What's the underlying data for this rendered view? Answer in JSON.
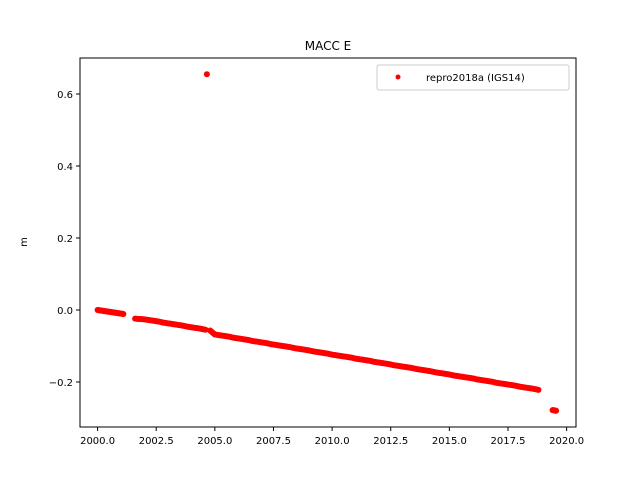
{
  "chart_data": {
    "type": "scatter",
    "title": "MACC E",
    "xlabel": "",
    "ylabel": "m",
    "xlim": [
      1999.25,
      2020.4
    ],
    "ylim": [
      -0.325,
      0.7
    ],
    "xticks": [
      2000.0,
      2002.5,
      2005.0,
      2007.5,
      2010.0,
      2012.5,
      2015.0,
      2017.5,
      2020.0
    ],
    "xtick_labels": [
      "2000.0",
      "2002.5",
      "2005.0",
      "2007.5",
      "2010.0",
      "2012.5",
      "2015.0",
      "2017.5",
      "2020.0"
    ],
    "yticks": [
      -0.2,
      0.0,
      0.2,
      0.4,
      0.6
    ],
    "ytick_labels": [
      "−0.2",
      "0.0",
      "0.2",
      "0.4",
      "0.6"
    ],
    "grid": false,
    "legend_position": "top-right",
    "series": [
      {
        "name": "repro2018a (IGS14)",
        "color": "#ff0000",
        "marker": "dot",
        "points": [
          [
            2000.0,
            0.0
          ],
          [
            2000.1,
            -0.001
          ],
          [
            2000.2,
            -0.002
          ],
          [
            2000.3,
            -0.003
          ],
          [
            2000.4,
            -0.004
          ],
          [
            2000.5,
            -0.005
          ],
          [
            2000.6,
            -0.006
          ],
          [
            2000.7,
            -0.007
          ],
          [
            2000.8,
            -0.008
          ],
          [
            2000.9,
            -0.009
          ],
          [
            2001.0,
            -0.01
          ],
          [
            2001.1,
            -0.011
          ],
          [
            2001.6,
            -0.024
          ],
          [
            2001.8,
            -0.025
          ],
          [
            2002.0,
            -0.026
          ],
          [
            2002.2,
            -0.028
          ],
          [
            2002.4,
            -0.03
          ],
          [
            2002.6,
            -0.032
          ],
          [
            2002.8,
            -0.035
          ],
          [
            2003.0,
            -0.037
          ],
          [
            2003.2,
            -0.039
          ],
          [
            2003.4,
            -0.041
          ],
          [
            2003.6,
            -0.043
          ],
          [
            2003.8,
            -0.046
          ],
          [
            2004.0,
            -0.048
          ],
          [
            2004.2,
            -0.05
          ],
          [
            2004.4,
            -0.052
          ],
          [
            2004.6,
            -0.055
          ],
          [
            2004.66,
            0.655
          ],
          [
            2004.8,
            -0.057
          ],
          [
            2005.0,
            -0.068
          ],
          [
            2005.2,
            -0.07
          ],
          [
            2005.4,
            -0.072
          ],
          [
            2005.6,
            -0.074
          ],
          [
            2005.8,
            -0.077
          ],
          [
            2006.0,
            -0.079
          ],
          [
            2006.2,
            -0.081
          ],
          [
            2006.4,
            -0.083
          ],
          [
            2006.6,
            -0.086
          ],
          [
            2006.8,
            -0.088
          ],
          [
            2007.0,
            -0.09
          ],
          [
            2007.2,
            -0.092
          ],
          [
            2007.4,
            -0.095
          ],
          [
            2007.6,
            -0.097
          ],
          [
            2007.8,
            -0.099
          ],
          [
            2008.0,
            -0.101
          ],
          [
            2008.2,
            -0.103
          ],
          [
            2008.4,
            -0.106
          ],
          [
            2008.6,
            -0.108
          ],
          [
            2008.8,
            -0.11
          ],
          [
            2009.0,
            -0.112
          ],
          [
            2009.2,
            -0.115
          ],
          [
            2009.4,
            -0.117
          ],
          [
            2009.6,
            -0.119
          ],
          [
            2009.8,
            -0.121
          ],
          [
            2010.0,
            -0.124
          ],
          [
            2010.2,
            -0.126
          ],
          [
            2010.4,
            -0.128
          ],
          [
            2010.6,
            -0.13
          ],
          [
            2010.8,
            -0.132
          ],
          [
            2011.0,
            -0.135
          ],
          [
            2011.2,
            -0.137
          ],
          [
            2011.4,
            -0.139
          ],
          [
            2011.6,
            -0.141
          ],
          [
            2011.8,
            -0.144
          ],
          [
            2012.0,
            -0.146
          ],
          [
            2012.2,
            -0.148
          ],
          [
            2012.4,
            -0.15
          ],
          [
            2012.6,
            -0.153
          ],
          [
            2012.8,
            -0.155
          ],
          [
            2013.0,
            -0.157
          ],
          [
            2013.2,
            -0.159
          ],
          [
            2013.4,
            -0.161
          ],
          [
            2013.6,
            -0.164
          ],
          [
            2013.8,
            -0.166
          ],
          [
            2014.0,
            -0.168
          ],
          [
            2014.2,
            -0.17
          ],
          [
            2014.4,
            -0.173
          ],
          [
            2014.6,
            -0.175
          ],
          [
            2014.8,
            -0.177
          ],
          [
            2015.0,
            -0.179
          ],
          [
            2015.2,
            -0.182
          ],
          [
            2015.4,
            -0.184
          ],
          [
            2015.6,
            -0.186
          ],
          [
            2015.8,
            -0.188
          ],
          [
            2016.0,
            -0.19
          ],
          [
            2016.2,
            -0.193
          ],
          [
            2016.4,
            -0.195
          ],
          [
            2016.6,
            -0.197
          ],
          [
            2016.8,
            -0.199
          ],
          [
            2017.0,
            -0.202
          ],
          [
            2017.2,
            -0.204
          ],
          [
            2017.4,
            -0.206
          ],
          [
            2017.6,
            -0.208
          ],
          [
            2017.8,
            -0.21
          ],
          [
            2018.0,
            -0.213
          ],
          [
            2018.2,
            -0.215
          ],
          [
            2018.4,
            -0.217
          ],
          [
            2018.6,
            -0.219
          ],
          [
            2018.8,
            -0.222
          ],
          [
            2019.4,
            -0.278
          ],
          [
            2019.5,
            -0.279
          ],
          [
            2019.55,
            -0.28
          ]
        ]
      }
    ]
  }
}
